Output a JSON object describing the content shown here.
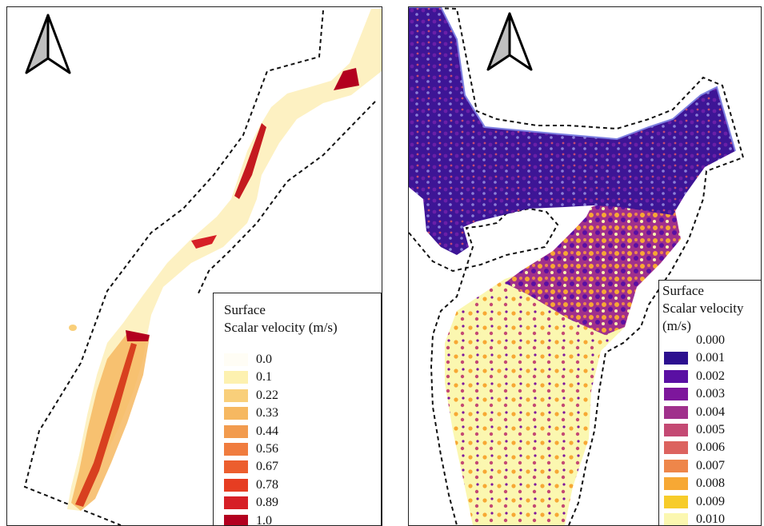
{
  "panels": {
    "left": {
      "legend": {
        "title_line1": "Surface",
        "title_line2": "Scalar velocity (m/s)",
        "items": [
          {
            "label": "0.0",
            "color": "#fffdf5"
          },
          {
            "label": "0.1",
            "color": "#fdf1b0"
          },
          {
            "label": "0.22",
            "color": "#f9cf7a"
          },
          {
            "label": "0.33",
            "color": "#f6b861"
          },
          {
            "label": "0.44",
            "color": "#f29b4e"
          },
          {
            "label": "0.56",
            "color": "#f07c3e"
          },
          {
            "label": "0.67",
            "color": "#ec5e2e"
          },
          {
            "label": "0.78",
            "color": "#e63d22"
          },
          {
            "label": "0.89",
            "color": "#d61f26"
          },
          {
            "label": "1.0",
            "color": "#b3001f"
          }
        ]
      },
      "north_arrow": "north-arrow-icon"
    },
    "right": {
      "legend": {
        "title_line1": "Surface",
        "title_line2": "Scalar velocity",
        "title_line3": "(m/s)",
        "items": [
          {
            "label": "0.000",
            "color": "#ffffff"
          },
          {
            "label": "0.001",
            "color": "#2c0f8f"
          },
          {
            "label": "0.002",
            "color": "#5a0fa3"
          },
          {
            "label": "0.003",
            "color": "#7d169c"
          },
          {
            "label": "0.004",
            "color": "#a0308c"
          },
          {
            "label": "0.005",
            "color": "#c44973"
          },
          {
            "label": "0.006",
            "color": "#dc635f"
          },
          {
            "label": "0.007",
            "color": "#ee864a"
          },
          {
            "label": "0.008",
            "color": "#f7a834"
          },
          {
            "label": "0.009",
            "color": "#f7cc2a"
          },
          {
            "label": "0.010",
            "color": "#fbf7b0"
          }
        ]
      },
      "north_arrow": "north-arrow-icon"
    }
  }
}
